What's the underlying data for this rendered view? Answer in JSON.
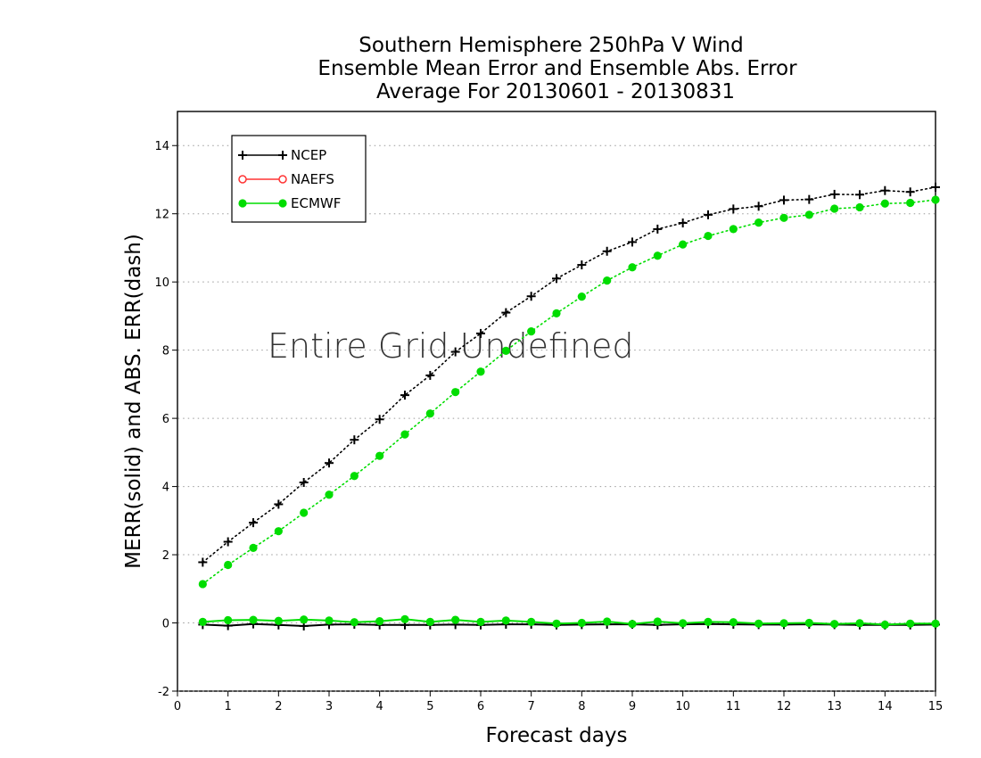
{
  "chart_data": {
    "type": "line",
    "title_lines": [
      "Southern Hemisphere 250hPa V Wind",
      "Ensemble Mean Error and Ensemble Abs. Error",
      "Average For 20130601 - 20130831"
    ],
    "xlabel": "Forecast days",
    "ylabel": "MERR(solid) and ABS. ERR(dash)",
    "xlim": [
      0,
      15
    ],
    "ylim": [
      -2,
      15
    ],
    "x_ticks": [
      "0",
      "1",
      "2",
      "3",
      "4",
      "5",
      "6",
      "7",
      "8",
      "9",
      "10",
      "11",
      "12",
      "13",
      "14",
      "15"
    ],
    "y_ticks": [
      "-2",
      "0",
      "2",
      "4",
      "6",
      "8",
      "10",
      "12",
      "14"
    ],
    "grid": "horizontal dotted",
    "legend_placement": "top-left",
    "annotation": "Entire Grid Undefined",
    "x": [
      0.5,
      1,
      1.5,
      2,
      2.5,
      3,
      3.5,
      4,
      4.5,
      5,
      5.5,
      6,
      6.5,
      7,
      7.5,
      8,
      8.5,
      9,
      9.5,
      10,
      10.5,
      11,
      11.5,
      12,
      12.5,
      13,
      13.5,
      14,
      14.5,
      15
    ],
    "series": [
      {
        "name": "NCEP",
        "color": "#000000",
        "marker": "plus",
        "abs_err": [
          1.78,
          2.38,
          2.94,
          3.48,
          4.12,
          4.69,
          5.37,
          5.97,
          6.68,
          7.26,
          7.95,
          8.49,
          9.1,
          9.58,
          10.1,
          10.5,
          10.9,
          11.17,
          11.55,
          11.73,
          11.97,
          12.14,
          12.22,
          12.4,
          12.42,
          12.57,
          12.56,
          12.68,
          12.64,
          12.78
        ],
        "mean_err": [
          -0.05,
          -0.08,
          -0.03,
          -0.06,
          -0.09,
          -0.05,
          -0.04,
          -0.06,
          -0.06,
          -0.06,
          -0.05,
          -0.06,
          -0.04,
          -0.04,
          -0.06,
          -0.05,
          -0.04,
          -0.04,
          -0.06,
          -0.04,
          -0.03,
          -0.04,
          -0.05,
          -0.05,
          -0.04,
          -0.05,
          -0.06,
          -0.06,
          -0.06,
          -0.05
        ]
      },
      {
        "name": "NAEFS",
        "color": "#ff3333",
        "marker": "open-circle",
        "abs_err": [],
        "mean_err": []
      },
      {
        "name": "ECMWF",
        "color": "#00dd00",
        "marker": "filled-circle",
        "abs_err": [
          1.14,
          1.7,
          2.2,
          2.69,
          3.23,
          3.76,
          4.31,
          4.9,
          5.53,
          6.14,
          6.77,
          7.37,
          7.98,
          8.55,
          9.08,
          9.57,
          10.04,
          10.43,
          10.77,
          11.1,
          11.35,
          11.55,
          11.74,
          11.88,
          11.97,
          12.15,
          12.19,
          12.3,
          12.32,
          12.41
        ],
        "mean_err": [
          0.03,
          0.08,
          0.09,
          0.06,
          0.1,
          0.07,
          0.02,
          0.05,
          0.11,
          0.03,
          0.09,
          0.03,
          0.07,
          0.03,
          -0.02,
          0.0,
          0.04,
          -0.03,
          0.04,
          -0.01,
          0.03,
          0.02,
          -0.02,
          -0.01,
          0.0,
          -0.03,
          -0.01,
          -0.05,
          -0.02,
          -0.02
        ]
      }
    ]
  }
}
